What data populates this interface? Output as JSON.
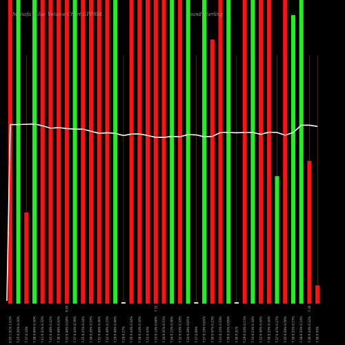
{
  "chart_data": {
    "type": "bar",
    "title": "Munafa Value Volume Chart GPPBRL",
    "title_right": "Pound Sterling",
    "colors": {
      "up": "#22ee22",
      "down": "#ff1111",
      "line": "#ffffff",
      "background": "#000000",
      "grid": "#7a5a1e"
    },
    "bars": [
      {
        "label": "0.95 1.01% 1.01%",
        "direction": "down",
        "value": 100
      },
      {
        "label": "7.35 0.26% 0.10%",
        "direction": "up",
        "value": 100
      },
      {
        "label": "7.37 0.10%",
        "direction": "down",
        "value": 30
      },
      {
        "label": "7.38 0.06% 0.10%",
        "direction": "up",
        "value": 100
      },
      {
        "label": "7.41 0.32% 0.32%",
        "direction": "down",
        "value": 100
      },
      {
        "label": "7.45 0.48% 0.42%",
        "direction": "down",
        "value": 100
      },
      {
        "label": "7.38 0.09% 0.42%",
        "direction": "down",
        "value": 100
      },
      {
        "label": "7.33 0.48% 0.04%",
        "direction": "down",
        "value": 100
      },
      {
        "label": "7.37 0.44% 0.39%",
        "direction": "up",
        "value": 100
      },
      {
        "label": "7.35 0.25% 0.24%",
        "direction": "down",
        "value": 100
      },
      {
        "label": "7.39 0.26% 0.57%",
        "direction": "down",
        "value": 100
      },
      {
        "label": "7.32 0.46% 0.46%",
        "direction": "down",
        "value": 100
      },
      {
        "label": "7.32 0.49% 0.15%",
        "direction": "down",
        "value": 100
      },
      {
        "label": "7.29 0.48% 0.46%",
        "direction": "up",
        "value": 100
      },
      {
        "label": "7.28 0.27%",
        "direction": "neutral",
        "value": 0.5
      },
      {
        "label": "7.36 0.44% 0.44%",
        "direction": "down",
        "value": 100
      },
      {
        "label": "7.38 0.14% 0.16%",
        "direction": "down",
        "value": 100
      },
      {
        "label": "7.32 0.43%",
        "direction": "down",
        "value": 100
      },
      {
        "label": "7.33 0.14% 0.00%",
        "direction": "down",
        "value": 100
      },
      {
        "label": "7.34 0.31% 0.51%",
        "direction": "down",
        "value": 100
      },
      {
        "label": "7.34 0.15% 0.30%",
        "direction": "up",
        "value": 100
      },
      {
        "label": "7.32 0.33% 0.33%",
        "direction": "down",
        "value": 100
      },
      {
        "label": "7.34 0.28% 0.05%",
        "direction": "up",
        "value": 100
      },
      {
        "label": "7.37 0.09%",
        "direction": "neutral",
        "value": 0.5
      },
      {
        "label": "7.37 0.19% 0.05%",
        "direction": "up",
        "value": 100
      },
      {
        "label": "7.30 0.47% 0.23%",
        "direction": "down",
        "value": 87
      },
      {
        "label": "7.33 0.15% 0.33%",
        "direction": "down",
        "value": 100
      },
      {
        "label": "7.36 0.20% 0.09%",
        "direction": "up",
        "value": 100
      },
      {
        "label": "7.36 0.31%",
        "direction": "neutral",
        "value": 0.5
      },
      {
        "label": "7.29 0.34% 0.11%",
        "direction": "down",
        "value": 100
      },
      {
        "label": "7.33 0.23% 0.34%",
        "direction": "up",
        "value": 100
      },
      {
        "label": "7.32 0.30% 0.44%",
        "direction": "down",
        "value": 100
      },
      {
        "label": "7.36 0.25% 0.20%",
        "direction": "down",
        "value": 100
      },
      {
        "label": "7.37 0.47% 0.27%",
        "direction": "up",
        "value": 42
      },
      {
        "label": "7.35 0.59% 0.56%",
        "direction": "down",
        "value": 100
      },
      {
        "label": "7.36 0.55% 0.27%",
        "direction": "up",
        "value": 95
      },
      {
        "label": "7.38 0.33% 0.14%",
        "direction": "up",
        "value": 100
      },
      {
        "label": "7.30 0.44% 0.32%",
        "direction": "down",
        "value": 47
      },
      {
        "label": "7.30 0.45%",
        "direction": "down",
        "value": 6
      }
    ],
    "bar_top_labels": {
      "7": "0.95",
      "18": "7.32",
      "37": "7.30"
    },
    "line": [
      17.6,
      17.6,
      17.7,
      17.8,
      17.2,
      16.4,
      16.6,
      16.3,
      16.1,
      16.1,
      15.4,
      14.7,
      14.9,
      14.7,
      14.0,
      14.5,
      14.5,
      14.0,
      13.4,
      13.4,
      13.7,
      13.6,
      14.3,
      14.2,
      13.6,
      13.7,
      15.0,
      15.0,
      14.9,
      15.0,
      15.0,
      14.4,
      15.1,
      15.0,
      14.1,
      15.0,
      17.4,
      17.4,
      17.0
    ],
    "line_range": [
      0,
      100
    ]
  }
}
